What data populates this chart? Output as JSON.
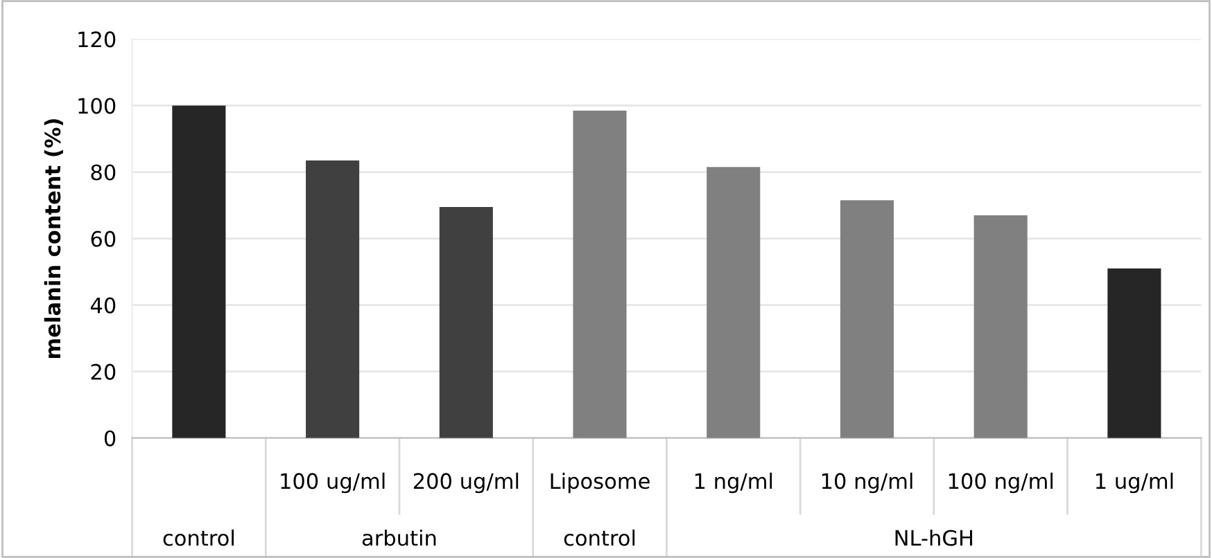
{
  "chart_data": {
    "type": "bar",
    "ylabel": "melanin content (%)",
    "categories": [
      null,
      "100 ug/ml",
      "200 ug/ml",
      "Liposome",
      "1 ng/ml",
      "10 ng/ml",
      "100 ng/ml",
      "1 ug/ml"
    ],
    "values": [
      100,
      83.5,
      69.5,
      98.5,
      81.5,
      71.5,
      67,
      51
    ],
    "colors": [
      "#262626",
      "#404040",
      "#404040",
      "#808080",
      "#808080",
      "#808080",
      "#808080",
      "#262626"
    ],
    "annotations": [
      "control",
      "arbutin",
      "control",
      "NL-hGH"
    ],
    "ylim": [
      0,
      120
    ],
    "yticks": [
      0,
      20,
      40,
      60,
      80,
      100,
      120
    ],
    "grid": "y",
    "legend": false
  }
}
